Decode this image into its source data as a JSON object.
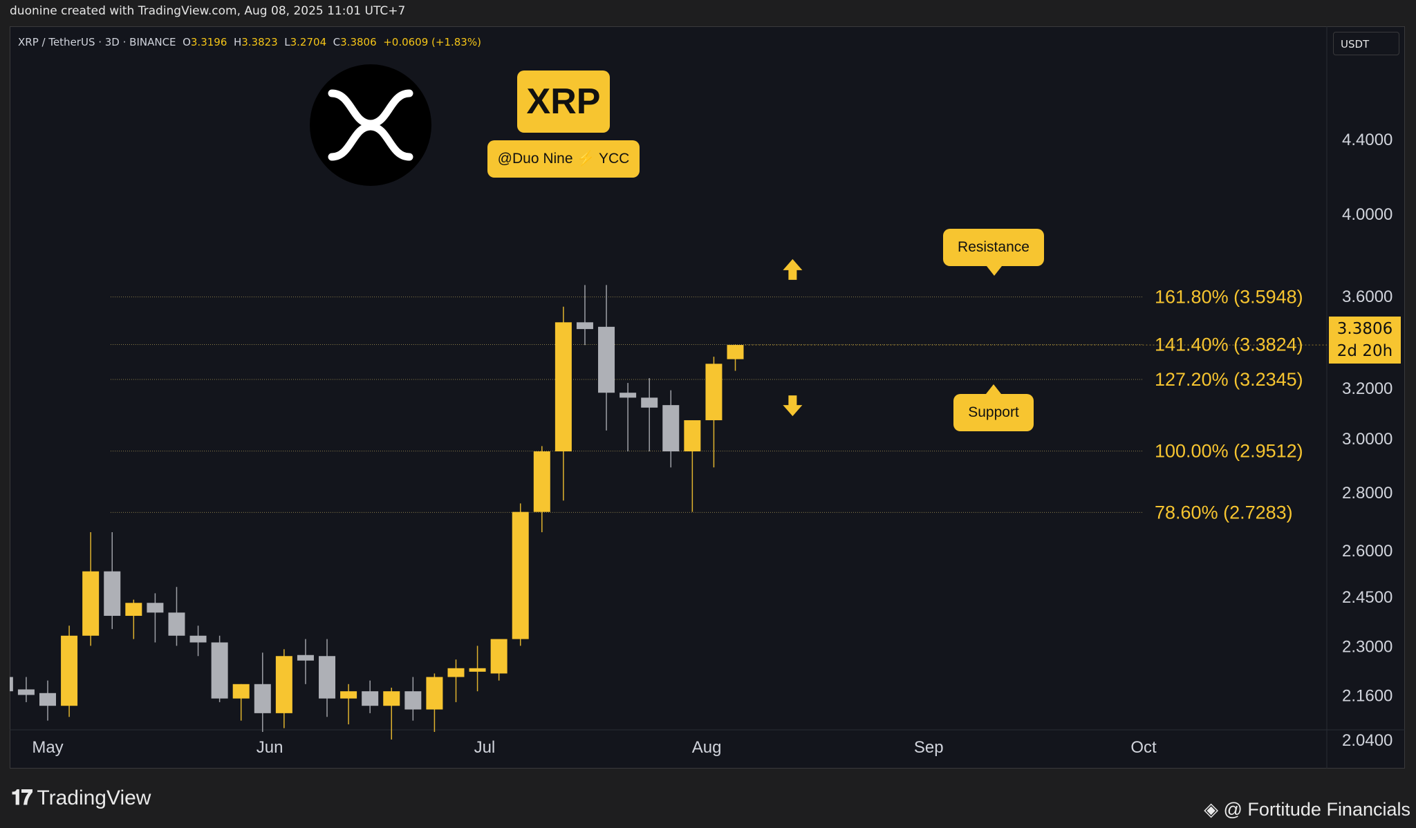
{
  "header": {
    "created_by": "duonine created with TradingView.com, Aug 08, 2025 11:01 UTC+7"
  },
  "symbol": {
    "name": "XRP / TetherUS · 3D · BINANCE",
    "o_label": "O",
    "o": "3.3196",
    "h_label": "H",
    "h": "3.3823",
    "l_label": "L",
    "l": "3.2704",
    "c_label": "C",
    "c": "3.3806",
    "change": "+0.0609 (+1.83%)"
  },
  "currency_button": "USDT",
  "badges": {
    "title": "XRP",
    "author": "@Duo Nine ⚡ YCC",
    "resistance": "Resistance",
    "support": "Support"
  },
  "price_tag": {
    "price": "3.3806",
    "countdown": "2d 20h"
  },
  "footer": {
    "brand": "TradingView",
    "brand_mark": "𝟏𝟕",
    "watermark": "@ Fortitude Financials"
  },
  "colors": {
    "bull": "#f7c530",
    "bear": "#aeb0b6",
    "background": "#13151c",
    "accent": "#f5c518"
  },
  "chart_data": {
    "type": "candlestick",
    "title": "XRP / TetherUS · 3D · BINANCE",
    "scale": "log",
    "ylim": [
      2.02,
      4.85
    ],
    "y_ticks": [
      "4.4000",
      "4.0000",
      "3.6000",
      "3.2000",
      "3.0000",
      "2.8000",
      "2.6000",
      "2.4500",
      "2.3000",
      "2.1600",
      "2.0400"
    ],
    "x_labels": [
      {
        "label": "May",
        "date": "2025-05-01"
      },
      {
        "label": "Jun",
        "date": "2025-06-01"
      },
      {
        "label": "Jul",
        "date": "2025-07-01"
      },
      {
        "label": "Aug",
        "date": "2025-08-01"
      },
      {
        "label": "Sep",
        "date": "2025-09-01"
      },
      {
        "label": "Oct",
        "date": "2025-10-01"
      }
    ],
    "candles": [
      {
        "date": "2025-04-22",
        "o": 2.18,
        "h": 2.24,
        "l": 2.15,
        "c": 2.21
      },
      {
        "date": "2025-04-25",
        "o": 2.21,
        "h": 2.31,
        "l": 2.12,
        "c": 2.17
      },
      {
        "date": "2025-04-28",
        "o": 2.17,
        "h": 2.21,
        "l": 2.14,
        "c": 2.165
      },
      {
        "date": "2025-05-01",
        "o": 2.165,
        "h": 2.2,
        "l": 2.09,
        "c": 2.13
      },
      {
        "date": "2025-05-04",
        "o": 2.13,
        "h": 2.36,
        "l": 2.1,
        "c": 2.33
      },
      {
        "date": "2025-05-07",
        "o": 2.33,
        "h": 2.66,
        "l": 2.3,
        "c": 2.53
      },
      {
        "date": "2025-05-10",
        "o": 2.53,
        "h": 2.66,
        "l": 2.35,
        "c": 2.39
      },
      {
        "date": "2025-05-13",
        "o": 2.39,
        "h": 2.44,
        "l": 2.32,
        "c": 2.43
      },
      {
        "date": "2025-05-16",
        "o": 2.43,
        "h": 2.46,
        "l": 2.31,
        "c": 2.4
      },
      {
        "date": "2025-05-19",
        "o": 2.4,
        "h": 2.48,
        "l": 2.3,
        "c": 2.33
      },
      {
        "date": "2025-05-22",
        "o": 2.33,
        "h": 2.36,
        "l": 2.27,
        "c": 2.31
      },
      {
        "date": "2025-05-25",
        "o": 2.31,
        "h": 2.33,
        "l": 2.14,
        "c": 2.15
      },
      {
        "date": "2025-05-28",
        "o": 2.15,
        "h": 2.19,
        "l": 2.09,
        "c": 2.19
      },
      {
        "date": "2025-05-31",
        "o": 2.19,
        "h": 2.28,
        "l": 2.06,
        "c": 2.11
      },
      {
        "date": "2025-06-03",
        "o": 2.11,
        "h": 2.29,
        "l": 2.07,
        "c": 2.27
      },
      {
        "date": "2025-06-06",
        "o": 2.27,
        "h": 2.32,
        "l": 2.19,
        "c": 2.26
      },
      {
        "date": "2025-06-09",
        "o": 2.27,
        "h": 2.32,
        "l": 2.1,
        "c": 2.15
      },
      {
        "date": "2025-06-12",
        "o": 2.15,
        "h": 2.19,
        "l": 2.08,
        "c": 2.17
      },
      {
        "date": "2025-06-15",
        "o": 2.17,
        "h": 2.2,
        "l": 2.11,
        "c": 2.13
      },
      {
        "date": "2025-06-18",
        "o": 2.13,
        "h": 2.18,
        "l": 2.04,
        "c": 2.17
      },
      {
        "date": "2025-06-21",
        "o": 2.17,
        "h": 2.21,
        "l": 2.09,
        "c": 2.12
      },
      {
        "date": "2025-06-24",
        "o": 2.12,
        "h": 2.22,
        "l": 2.06,
        "c": 2.21
      },
      {
        "date": "2025-06-27",
        "o": 2.21,
        "h": 2.26,
        "l": 2.14,
        "c": 2.235
      },
      {
        "date": "2025-06-30",
        "o": 2.225,
        "h": 2.3,
        "l": 2.17,
        "c": 2.235
      },
      {
        "date": "2025-07-03",
        "o": 2.22,
        "h": 2.31,
        "l": 2.2,
        "c": 2.32
      },
      {
        "date": "2025-07-06",
        "o": 2.32,
        "h": 2.76,
        "l": 2.3,
        "c": 2.73
      },
      {
        "date": "2025-07-09",
        "o": 2.73,
        "h": 2.97,
        "l": 2.66,
        "c": 2.95
      },
      {
        "date": "2025-07-12",
        "o": 2.95,
        "h": 3.55,
        "l": 2.77,
        "c": 3.48
      },
      {
        "date": "2025-07-15",
        "o": 3.48,
        "h": 3.65,
        "l": 3.38,
        "c": 3.45
      },
      {
        "date": "2025-07-18",
        "o": 3.46,
        "h": 3.65,
        "l": 3.03,
        "c": 3.18
      },
      {
        "date": "2025-07-21",
        "o": 3.18,
        "h": 3.22,
        "l": 2.95,
        "c": 3.16
      },
      {
        "date": "2025-07-24",
        "o": 3.16,
        "h": 3.24,
        "l": 2.95,
        "c": 3.12
      },
      {
        "date": "2025-07-27",
        "o": 3.13,
        "h": 3.19,
        "l": 2.89,
        "c": 2.95
      },
      {
        "date": "2025-07-30",
        "o": 2.95,
        "h": 3.07,
        "l": 2.73,
        "c": 3.07
      },
      {
        "date": "2025-08-02",
        "o": 3.07,
        "h": 3.33,
        "l": 2.89,
        "c": 3.3
      },
      {
        "date": "2025-08-05",
        "o": 3.3196,
        "h": 3.3823,
        "l": 3.2704,
        "c": 3.3806
      }
    ],
    "fib_levels": [
      {
        "label": "161.80% (3.5948)",
        "value": 3.5948
      },
      {
        "label": "141.40% (3.3824)",
        "value": 3.3824
      },
      {
        "label": "127.20% (3.2345)",
        "value": 3.2345
      },
      {
        "label": "100.00% (2.9512)",
        "value": 2.9512
      },
      {
        "label": "78.60% (2.7283)",
        "value": 2.7283
      }
    ],
    "current_price": 3.3806,
    "arrows": [
      {
        "direction": "up",
        "date": "2025-08-13",
        "price": 3.72
      },
      {
        "direction": "down",
        "date": "2025-08-13",
        "price": 3.13
      }
    ]
  }
}
